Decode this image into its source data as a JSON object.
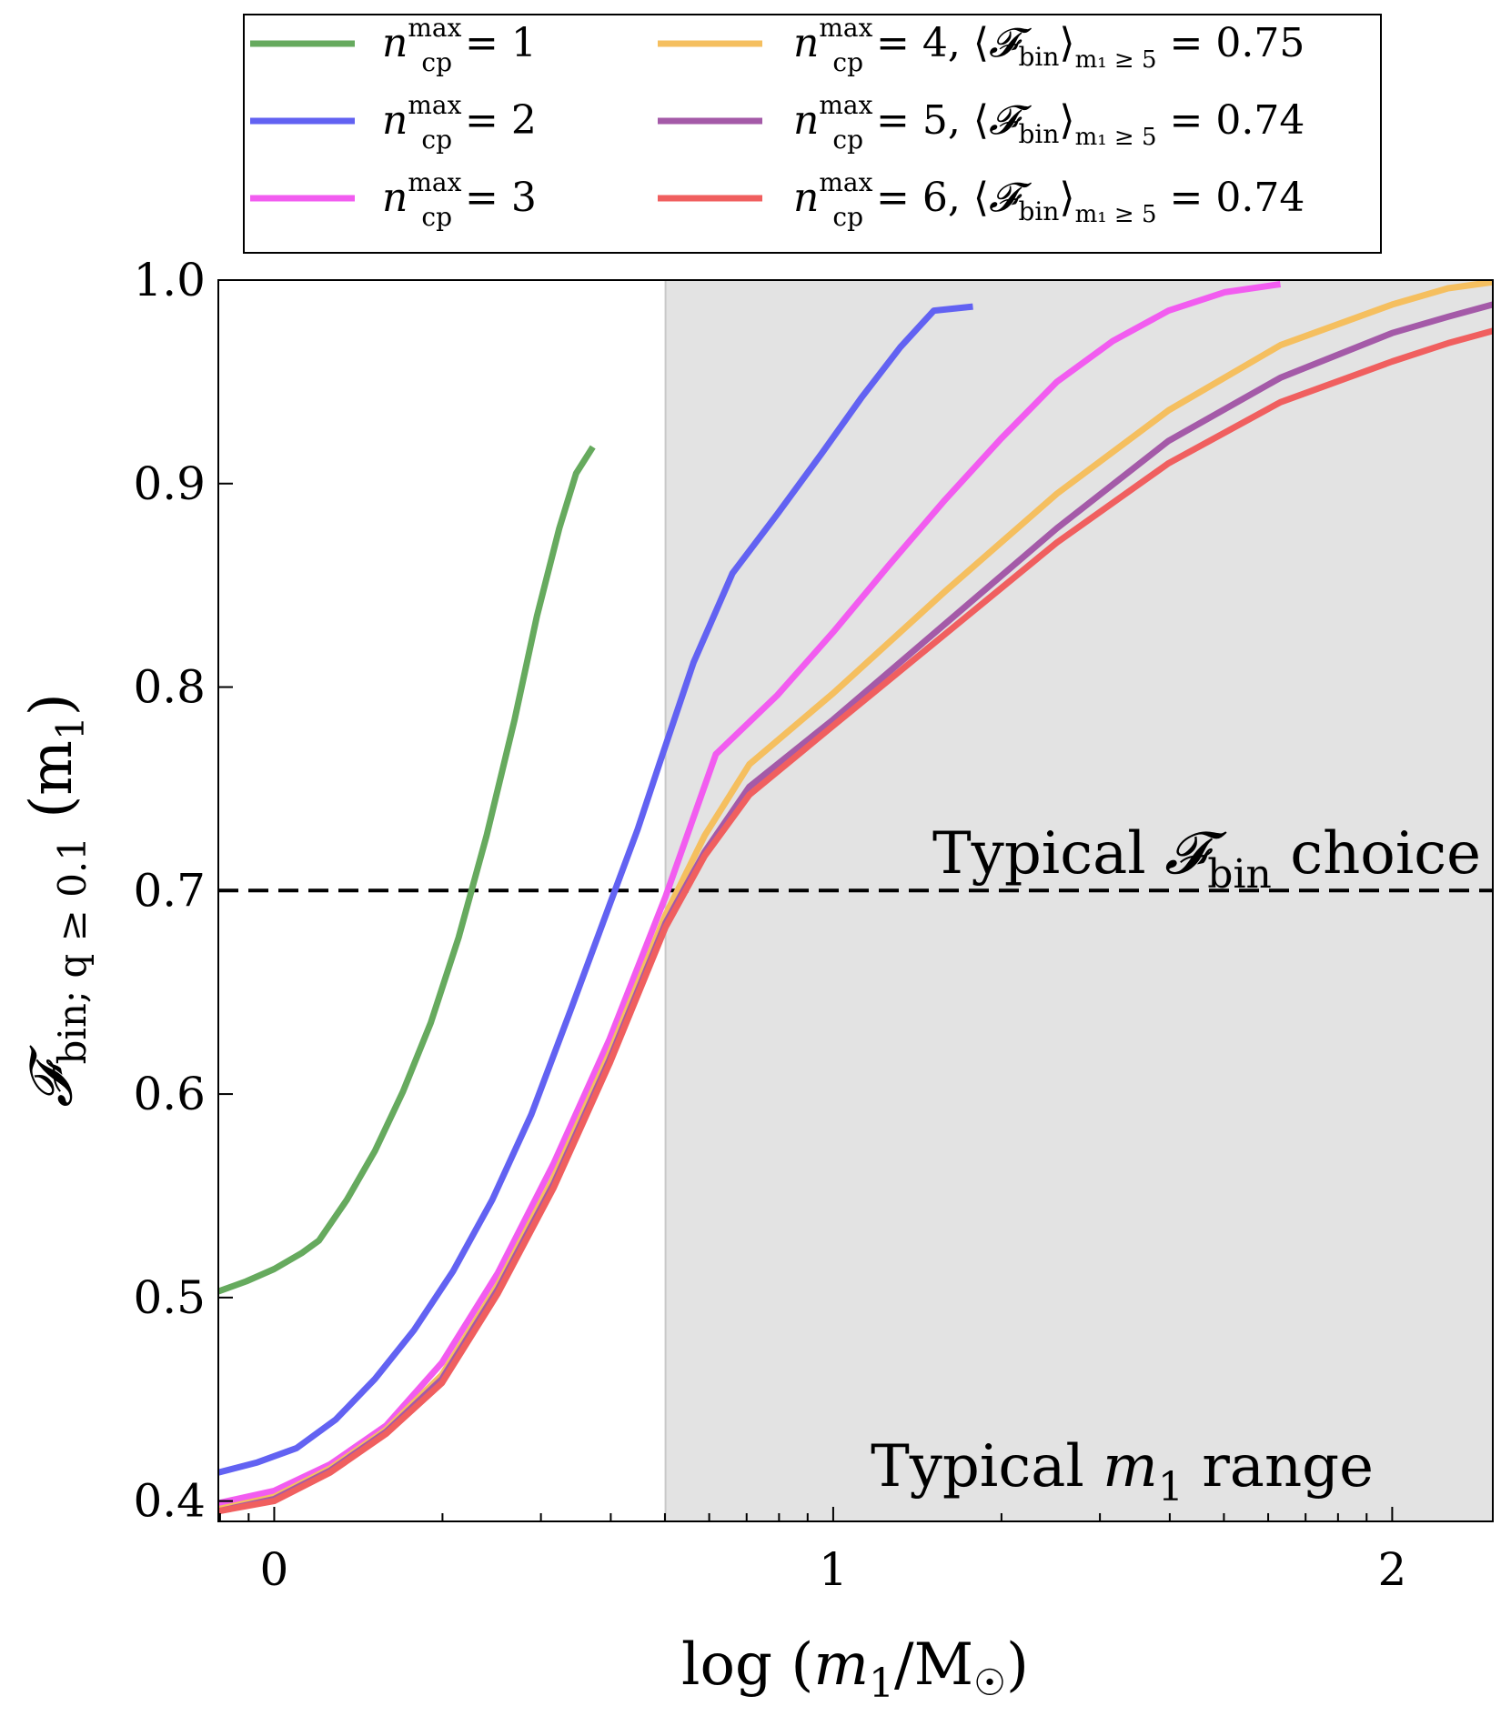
{
  "chart_data": {
    "type": "line",
    "title": "",
    "xlabel": "log (m₁/M☉)",
    "ylabel": "𝓕bin; q≥0.1 (m₁)",
    "xlim": [
      -0.1,
      2.18
    ],
    "ylim": [
      0.39,
      1.0
    ],
    "x_ticks": [
      0,
      1,
      2
    ],
    "y_ticks": [
      0.4,
      0.5,
      0.6,
      0.7,
      0.8,
      0.9,
      1.0
    ],
    "x_tick_labels": [
      "0",
      "1",
      "2"
    ],
    "y_tick_labels": [
      "0.4",
      "0.5",
      "0.6",
      "0.7",
      "0.8",
      "0.9",
      "1.0"
    ],
    "minor_ticks": "log-spaced",
    "grid": false,
    "legend_placement": "top (above plot)",
    "shaded_region": {
      "x_from": 0.7,
      "x_to": 2.18,
      "color": "#e3e3e3",
      "label": "Typical m₁ range"
    },
    "reference_line": {
      "y": 0.7,
      "style": "dashed",
      "color": "#000000",
      "label": "Typical 𝓕bin choice"
    },
    "series": [
      {
        "name": "n_cp^max = 1",
        "legend_label": "ncpmax = 1",
        "color": "#66aa5e",
        "x": [
          -0.1,
          -0.05,
          0.0,
          0.05,
          0.08,
          0.13,
          0.18,
          0.23,
          0.28,
          0.33,
          0.38,
          0.43,
          0.47,
          0.51,
          0.54,
          0.57
        ],
        "y": [
          0.503,
          0.508,
          0.514,
          0.522,
          0.528,
          0.548,
          0.572,
          0.601,
          0.635,
          0.677,
          0.727,
          0.784,
          0.835,
          0.878,
          0.905,
          0.918
        ]
      },
      {
        "name": "n_cp^max = 2",
        "legend_label": "ncpmax = 2",
        "color": "#6262f2",
        "x": [
          -0.1,
          -0.03,
          0.04,
          0.11,
          0.18,
          0.25,
          0.32,
          0.39,
          0.46,
          0.53,
          0.6,
          0.65,
          0.69,
          0.75,
          0.82,
          0.9,
          0.98,
          1.05,
          1.12,
          1.18,
          1.25
        ],
        "y": [
          0.414,
          0.419,
          0.426,
          0.44,
          0.46,
          0.484,
          0.513,
          0.548,
          0.59,
          0.641,
          0.693,
          0.73,
          0.763,
          0.812,
          0.856,
          0.885,
          0.915,
          0.942,
          0.967,
          0.985,
          0.987
        ]
      },
      {
        "name": "n_cp^max = 3",
        "legend_label": "ncpmax = 3",
        "color": "#f25cf0",
        "x": [
          -0.1,
          0.0,
          0.1,
          0.2,
          0.3,
          0.4,
          0.5,
          0.6,
          0.7,
          0.79,
          0.9,
          1.0,
          1.1,
          1.2,
          1.3,
          1.4,
          1.5,
          1.6,
          1.7,
          1.8
        ],
        "y": [
          0.399,
          0.405,
          0.418,
          0.437,
          0.468,
          0.512,
          0.566,
          0.627,
          0.697,
          0.767,
          0.796,
          0.827,
          0.86,
          0.892,
          0.922,
          0.95,
          0.97,
          0.985,
          0.994,
          0.998
        ]
      },
      {
        "name": "n_cp^max = 4, ⟨𝓕bin⟩ m1≥5 = 0.75",
        "legend_label": "ncpmax = 4, ⟨𝓕bin⟩m₁≥5 = 0.75",
        "color": "#f5bf5f",
        "x": [
          -0.1,
          0.0,
          0.1,
          0.2,
          0.3,
          0.4,
          0.5,
          0.6,
          0.7,
          0.77,
          0.85,
          1.0,
          1.2,
          1.4,
          1.6,
          1.8,
          2.0,
          2.1,
          2.18
        ],
        "y": [
          0.396,
          0.402,
          0.416,
          0.435,
          0.462,
          0.506,
          0.559,
          0.62,
          0.688,
          0.727,
          0.762,
          0.797,
          0.847,
          0.895,
          0.936,
          0.968,
          0.988,
          0.996,
          0.999
        ]
      },
      {
        "name": "n_cp^max = 5, ⟨𝓕bin⟩ m1≥5 = 0.74",
        "legend_label": "ncpmax = 5, ⟨𝓕bin⟩m₁≥5 = 0.74",
        "color": "#a45aa8",
        "x": [
          -0.1,
          0.0,
          0.1,
          0.2,
          0.3,
          0.4,
          0.5,
          0.6,
          0.7,
          0.77,
          0.85,
          1.0,
          1.2,
          1.4,
          1.6,
          1.8,
          2.0,
          2.1,
          2.18
        ],
        "y": [
          0.395,
          0.401,
          0.415,
          0.434,
          0.46,
          0.504,
          0.556,
          0.617,
          0.684,
          0.719,
          0.751,
          0.784,
          0.831,
          0.878,
          0.921,
          0.952,
          0.974,
          0.982,
          0.988
        ]
      },
      {
        "name": "n_cp^max = 6, ⟨𝓕bin⟩ m1≥5 = 0.74",
        "legend_label": "ncpmax = 6, ⟨𝓕bin⟩m₁≥5 = 0.74",
        "color": "#f05f5f",
        "x": [
          -0.1,
          0.0,
          0.1,
          0.2,
          0.3,
          0.4,
          0.5,
          0.6,
          0.7,
          0.77,
          0.85,
          1.0,
          1.2,
          1.4,
          1.6,
          1.8,
          2.0,
          2.1,
          2.18
        ],
        "y": [
          0.395,
          0.4,
          0.414,
          0.433,
          0.458,
          0.502,
          0.554,
          0.615,
          0.682,
          0.717,
          0.747,
          0.781,
          0.826,
          0.871,
          0.91,
          0.94,
          0.96,
          0.969,
          0.975
        ]
      }
    ]
  },
  "annotations": {
    "fbin_choice_pre": "Typical ",
    "fbin_choice_sym": "𝓕",
    "fbin_choice_sub": "bin",
    "fbin_choice_post": " choice",
    "m1_range_pre": "Typical ",
    "m1_range_sym": "m",
    "m1_range_sub": "1",
    "m1_range_post": " range"
  },
  "legend_parts": [
    {
      "base": "n",
      "sup": "max",
      "sub": "cp",
      "rest": " = 1",
      "extra_pre": "",
      "extra_sym": "",
      "extra_sub": "",
      "extra_sub2": "",
      "extra_val": ""
    },
    {
      "base": "n",
      "sup": "max",
      "sub": "cp",
      "rest": " = 2",
      "extra_pre": "",
      "extra_sym": "",
      "extra_sub": "",
      "extra_sub2": "",
      "extra_val": ""
    },
    {
      "base": "n",
      "sup": "max",
      "sub": "cp",
      "rest": " = 3",
      "extra_pre": "",
      "extra_sym": "",
      "extra_sub": "",
      "extra_sub2": "",
      "extra_val": ""
    },
    {
      "base": "n",
      "sup": "max",
      "sub": "cp",
      "rest": " = 4, ",
      "extra_pre": "⟨",
      "extra_sym": "𝓕",
      "extra_sub": "bin",
      "extra_sub2": "m₁ ≥ 5",
      "extra_val": " = 0.75"
    },
    {
      "base": "n",
      "sup": "max",
      "sub": "cp",
      "rest": " = 5, ",
      "extra_pre": "⟨",
      "extra_sym": "𝓕",
      "extra_sub": "bin",
      "extra_sub2": "m₁ ≥ 5",
      "extra_val": " = 0.74"
    },
    {
      "base": "n",
      "sup": "max",
      "sub": "cp",
      "rest": " = 6, ",
      "extra_pre": "⟨",
      "extra_sym": "𝓕",
      "extra_sub": "bin",
      "extra_sub2": "m₁ ≥ 5",
      "extra_val": " = 0.74"
    }
  ],
  "axis_text": {
    "x_pre": "log (",
    "x_m": "m",
    "x_sub": "1",
    "x_mid": "/M",
    "x_sun": "☉",
    "x_post": ")",
    "y_sym": "𝓕",
    "y_sub": "bin; q ≥ 0.1",
    "y_post": " (m",
    "y_post_sub": "1",
    "y_close": ")"
  }
}
